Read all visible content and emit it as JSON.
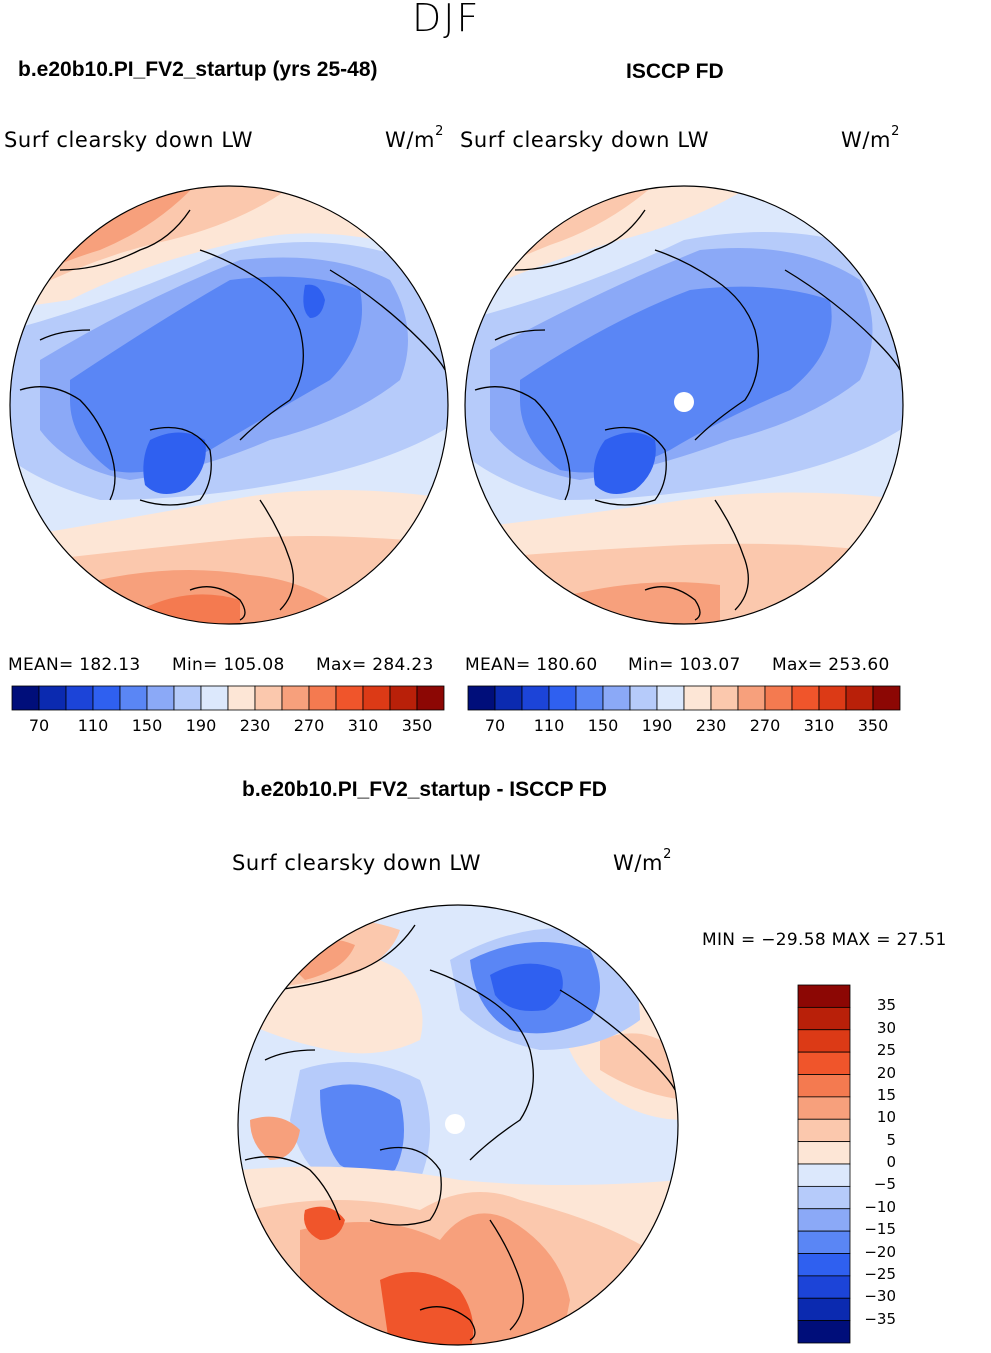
{
  "season": "DJF",
  "panels": {
    "left": {
      "title": "b.e20b10.PI_FV2_startup (yrs 25-48)",
      "subtitle": "Surf clearsky down LW",
      "units_base": "W/m",
      "units_exp": "2",
      "mean": "MEAN= 182.13",
      "min": "Min= 105.08",
      "max": "Max= 284.23"
    },
    "right": {
      "title": "ISCCP FD",
      "subtitle": "Surf clearsky down LW",
      "units_base": "W/m",
      "units_exp": "2",
      "mean": "MEAN= 180.60",
      "min": "Min= 103.07",
      "max": "Max= 253.60"
    },
    "diff": {
      "title": "b.e20b10.PI_FV2_startup - ISCCP FD",
      "subtitle": "Surf clearsky down LW",
      "units_base": "W/m",
      "units_exp": "2",
      "minmax": "MIN = −29.58 MAX =  27.51"
    }
  },
  "abs_colorbar": {
    "colors": [
      "#000e7a",
      "#0b2ab0",
      "#1c44d8",
      "#2f60f0",
      "#5a86f5",
      "#8ba9f7",
      "#b6cbfa",
      "#dce8fc",
      "#fde6d6",
      "#fbc8ad",
      "#f7a07c",
      "#f47a50",
      "#f0552b",
      "#dc3a16",
      "#b92009",
      "#8c0704"
    ],
    "labels": [
      "70",
      "110",
      "150",
      "190",
      "230",
      "270",
      "310",
      "350"
    ]
  },
  "diff_colorbar": {
    "colors": [
      "#8c0704",
      "#b92009",
      "#dc3a16",
      "#f0552b",
      "#f47a50",
      "#f7a07c",
      "#fbc8ad",
      "#fde6d6",
      "#dce8fc",
      "#b6cbfa",
      "#8ba9f7",
      "#5a86f5",
      "#2f60f0",
      "#1c44d8",
      "#0b2ab0",
      "#000e7a"
    ],
    "labels": [
      "35",
      "30",
      "25",
      "20",
      "15",
      "10",
      "5",
      "0",
      "−5",
      "−10",
      "−15",
      "−20",
      "−25",
      "−30",
      "−35"
    ]
  },
  "map_colors": {
    "abs_pale_blue": "#dce8fc",
    "abs_light_blue": "#b6cbfa",
    "abs_mid_blue": "#8ba9f7",
    "abs_blue": "#5a86f5",
    "abs_dark_blue": "#2f60f0",
    "abs_cream": "#fde6d6",
    "abs_peach": "#fbc8ad",
    "abs_salmon": "#f7a07c",
    "abs_orange": "#f47a50",
    "diff_pale_blue": "#dce8fc",
    "diff_light_blue": "#b6cbfa",
    "diff_blue": "#5a86f5",
    "diff_dark_blue": "#2f60f0",
    "diff_cream": "#fde6d6",
    "diff_peach": "#fbc8ad",
    "diff_salmon": "#f7a07c",
    "diff_red": "#f0552b",
    "missing": "#ffffff",
    "coast": "#000000"
  }
}
